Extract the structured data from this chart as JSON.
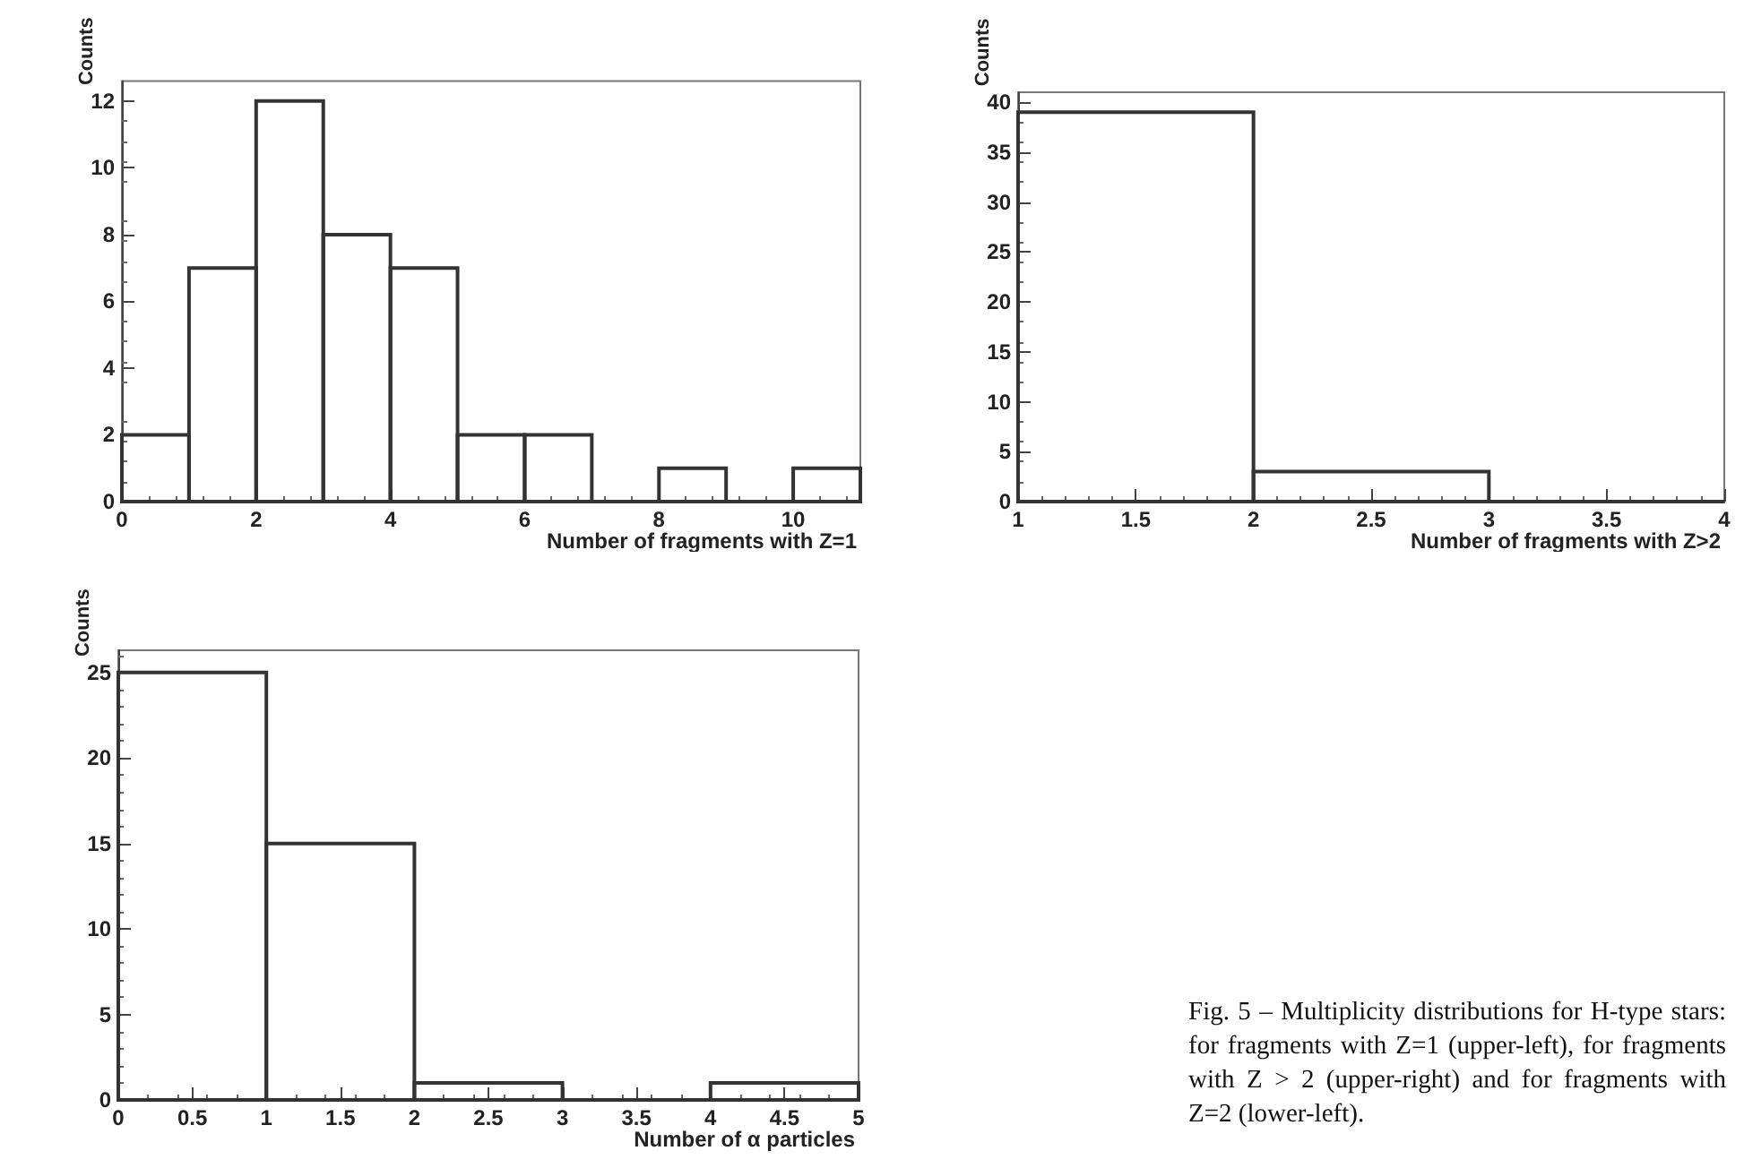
{
  "chart_data": [
    {
      "type": "histogram",
      "xlabel": "Number of fragments with Z=1",
      "ylabel": "Counts",
      "bins": [
        0,
        1,
        2,
        3,
        4,
        5,
        6,
        7,
        8,
        9,
        10,
        11
      ],
      "values": [
        2,
        7,
        12,
        8,
        7,
        2,
        2,
        0,
        1,
        0,
        1
      ],
      "color": "#333333",
      "xlim": [
        0,
        11
      ],
      "xticks": [
        0,
        2,
        4,
        6,
        8,
        10
      ],
      "ylim": [
        0,
        12.6
      ],
      "yticks": [
        0,
        2,
        4,
        6,
        8,
        10,
        12
      ]
    },
    {
      "type": "histogram",
      "xlabel": "Number of fragments with Z>2",
      "ylabel": "Counts",
      "bins": [
        1,
        2,
        3,
        4
      ],
      "values": [
        39,
        3,
        0
      ],
      "color": "#333333",
      "xlim": [
        1,
        4
      ],
      "xticks": [
        1,
        1.5,
        2,
        2.5,
        3,
        3.5,
        4
      ],
      "ylim": [
        0,
        41
      ],
      "yticks": [
        0,
        5,
        10,
        15,
        20,
        25,
        30,
        35,
        40
      ]
    },
    {
      "type": "histogram",
      "xlabel": "Number of α particles",
      "ylabel": "Counts",
      "bins": [
        0,
        1,
        2,
        3,
        4,
        5
      ],
      "values": [
        25,
        15,
        1,
        0,
        1
      ],
      "color": "#333333",
      "xlim": [
        0,
        5
      ],
      "xticks": [
        0,
        0.5,
        1,
        1.5,
        2,
        2.5,
        3,
        3.5,
        4,
        4.5,
        5
      ],
      "ylim": [
        0,
        26.3
      ],
      "yticks": [
        0,
        5,
        10,
        15,
        20,
        25
      ],
      "annotations": [
        "Fig. 5 – Multiplicity distributions for H-type stars: for fragments with Z=1 (upper-left), for fragments with Z > 2 (upper-right) and for fragments with Z=2 (lower-left)."
      ]
    }
  ]
}
